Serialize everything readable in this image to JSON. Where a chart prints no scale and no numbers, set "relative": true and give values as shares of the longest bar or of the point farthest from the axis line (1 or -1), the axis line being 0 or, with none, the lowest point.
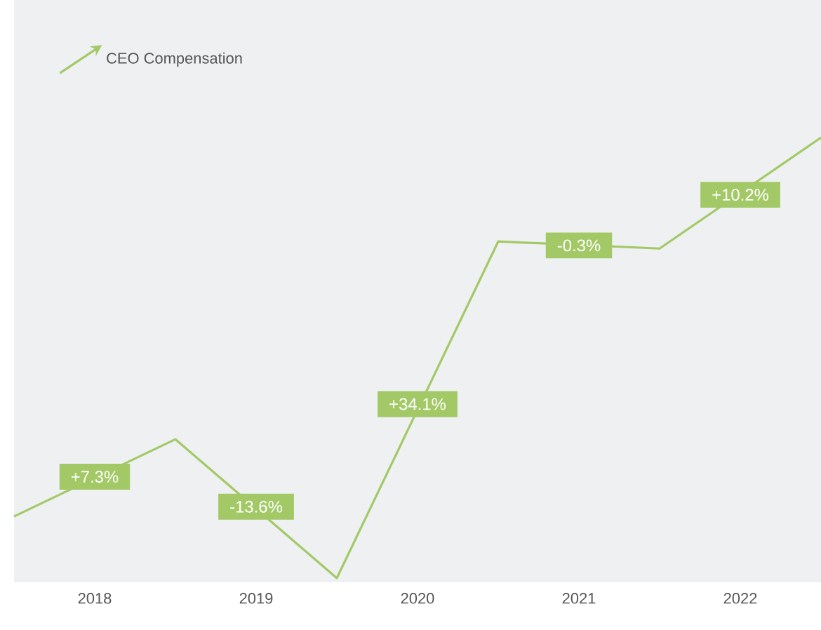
{
  "chart_data": {
    "type": "line",
    "relative": true,
    "x": [
      2017.5,
      2018.5,
      2019.5,
      2020.5,
      2021.5,
      2022.5
    ],
    "xlim": [
      2017.5,
      2022.5
    ],
    "xticks": [
      2018,
      2019,
      2020,
      2021,
      2022
    ],
    "series": [
      {
        "name": "CEO Compensation",
        "color": "#a3c967",
        "values": [
          0.14,
          0.315,
          0,
          0.764,
          0.748,
          1
        ]
      }
    ],
    "legend": "top left",
    "marker": "none",
    "line_style": "solid",
    "annotations": [
      {
        "text": "+7.3%",
        "x": 2018,
        "y": 0.23
      },
      {
        "text": "-13.6%",
        "x": 2019,
        "y": 0.162
      },
      {
        "text": "+34.1%",
        "x": 2020,
        "y": 0.395
      },
      {
        "text": "-0.3%",
        "x": 2021,
        "y": 0.755
      },
      {
        "text": "+10.2%",
        "x": 2022,
        "y": 0.87
      }
    ]
  }
}
